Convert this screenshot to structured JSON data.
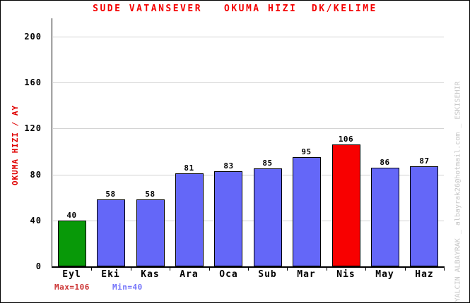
{
  "title": "SUDE VATANSEVER   OKUMA HIZI  DK/KELIME",
  "watermark": "YALCIN ALBAYRAK _ albayrak26@hotmail.com _ ESKISEHIR",
  "footer": {
    "max_label": "Max=106",
    "min_label": "Min=40"
  },
  "colors": {
    "title": "#F40000",
    "ylabel": "#E00000",
    "max_label": "#CC3333",
    "min_label": "#7373FA",
    "grid": "#D2D2D2",
    "axis": "#000000",
    "bar_border": "#000000",
    "watermark": "#C6C6C6",
    "palette": {
      "blue": "#6467F8",
      "green": "#089908",
      "red": "#F80000"
    }
  },
  "chart_data": {
    "type": "bar",
    "title": "SUDE VATANSEVER   OKUMA HIZI  DK/KELIME",
    "ylabel": "OKUMA HIZI / AY",
    "xlabel": "",
    "categories": [
      "Eyl",
      "Eki",
      "Kas",
      "Ara",
      "Oca",
      "Sub",
      "Mar",
      "Nis",
      "May",
      "Haz"
    ],
    "values": [
      40,
      58,
      58,
      81,
      83,
      85,
      95,
      106,
      86,
      87
    ],
    "bar_colors": [
      "green",
      "blue",
      "blue",
      "blue",
      "blue",
      "blue",
      "blue",
      "red",
      "blue",
      "blue"
    ],
    "ylim": [
      0,
      216
    ],
    "yticks": [
      0,
      40,
      80,
      120,
      160,
      200
    ],
    "grid": true,
    "legend": false,
    "annotations": {
      "max": 106,
      "min": 40
    }
  }
}
